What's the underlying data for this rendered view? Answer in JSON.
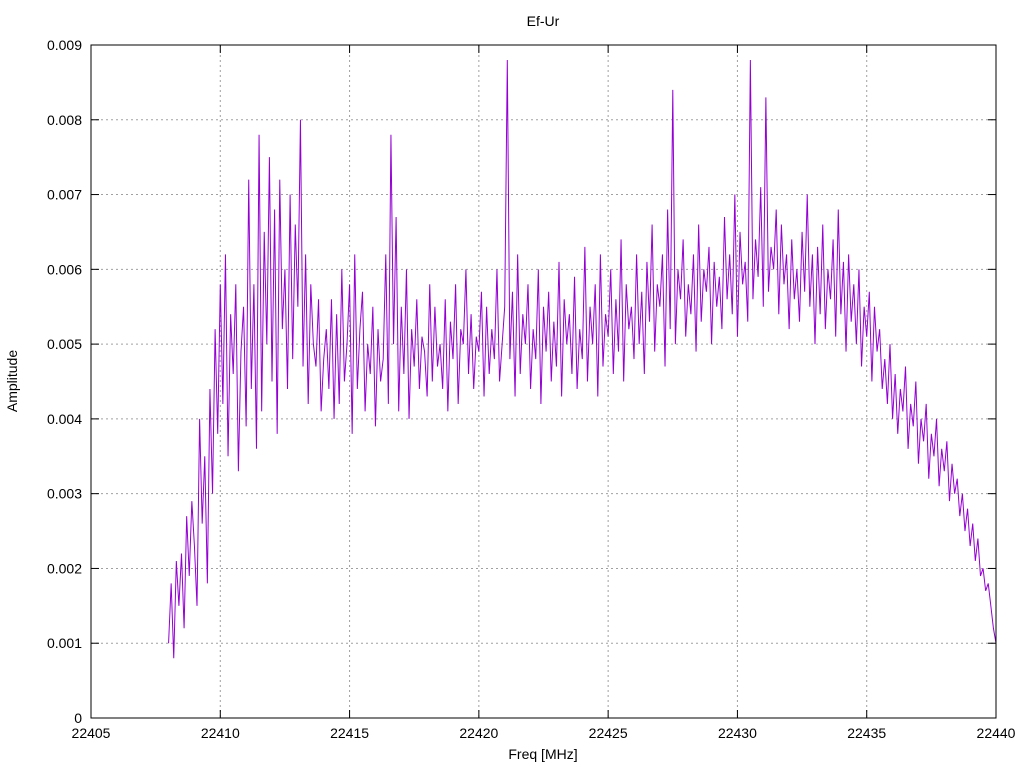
{
  "chart_data": {
    "type": "line",
    "title": "Ef-Ur",
    "xlabel": "Freq [MHz]",
    "ylabel": "Amplitude",
    "xlim": [
      22405,
      22440
    ],
    "ylim": [
      0,
      0.009
    ],
    "xticks": [
      22405,
      22410,
      22415,
      22420,
      22425,
      22430,
      22435,
      22440
    ],
    "xtick_labels": [
      "22405",
      "22410",
      "22415",
      "22420",
      "22425",
      "22430",
      "22435",
      "22440"
    ],
    "yticks": [
      0,
      0.001,
      0.002,
      0.003,
      0.004,
      0.005,
      0.006,
      0.007,
      0.008,
      0.009
    ],
    "ytick_labels": [
      "0",
      "0.001",
      "0.002",
      "0.003",
      "0.004",
      "0.005",
      "0.006",
      "0.007",
      "0.008",
      "0.009"
    ],
    "grid": true,
    "line_color": "#9400d3",
    "series": [
      {
        "x_start": 22408.0,
        "x_end": 22440.0,
        "x_step": 0.1,
        "values": [
          0.001,
          0.0018,
          0.0008,
          0.0021,
          0.0015,
          0.0022,
          0.0012,
          0.0027,
          0.0019,
          0.0029,
          0.0023,
          0.0015,
          0.004,
          0.0026,
          0.0035,
          0.0018,
          0.0044,
          0.003,
          0.0052,
          0.0038,
          0.0058,
          0.0042,
          0.0062,
          0.0035,
          0.0054,
          0.0046,
          0.0058,
          0.0033,
          0.0049,
          0.0055,
          0.0039,
          0.0072,
          0.0044,
          0.0058,
          0.0036,
          0.0078,
          0.0041,
          0.0065,
          0.005,
          0.0075,
          0.0045,
          0.0068,
          0.0038,
          0.0072,
          0.0052,
          0.006,
          0.0044,
          0.007,
          0.0048,
          0.0066,
          0.0055,
          0.008,
          0.0047,
          0.0062,
          0.0042,
          0.0058,
          0.005,
          0.0047,
          0.0056,
          0.0041,
          0.0048,
          0.0052,
          0.0044,
          0.0056,
          0.004,
          0.0054,
          0.0042,
          0.006,
          0.0045,
          0.005,
          0.0058,
          0.0038,
          0.0062,
          0.0044,
          0.0052,
          0.0057,
          0.0041,
          0.005,
          0.0046,
          0.0055,
          0.0039,
          0.0052,
          0.0045,
          0.0048,
          0.0062,
          0.0042,
          0.0078,
          0.005,
          0.0067,
          0.0041,
          0.0055,
          0.0046,
          0.006,
          0.004,
          0.0052,
          0.0047,
          0.0056,
          0.0044,
          0.0051,
          0.0049,
          0.0043,
          0.0058,
          0.0045,
          0.0055,
          0.0047,
          0.005,
          0.0044,
          0.0056,
          0.0041,
          0.0053,
          0.0048,
          0.0058,
          0.0042,
          0.0052,
          0.005,
          0.006,
          0.0046,
          0.0054,
          0.0044,
          0.0051,
          0.0049,
          0.0057,
          0.0043,
          0.0055,
          0.0046,
          0.0052,
          0.0048,
          0.006,
          0.0045,
          0.005,
          0.0055,
          0.0088,
          0.0048,
          0.0057,
          0.0043,
          0.0062,
          0.0046,
          0.0054,
          0.005,
          0.0058,
          0.0044,
          0.0052,
          0.0048,
          0.006,
          0.0042,
          0.0055,
          0.0049,
          0.0057,
          0.0045,
          0.0053,
          0.0047,
          0.0061,
          0.0043,
          0.0056,
          0.005,
          0.0054,
          0.0046,
          0.0059,
          0.0044,
          0.0052,
          0.0048,
          0.0063,
          0.0045,
          0.0055,
          0.005,
          0.0058,
          0.0043,
          0.0062,
          0.0047,
          0.0054,
          0.0051,
          0.006,
          0.0046,
          0.0056,
          0.0049,
          0.0064,
          0.0045,
          0.0058,
          0.0052,
          0.0055,
          0.0048,
          0.0062,
          0.005,
          0.0057,
          0.0046,
          0.0061,
          0.0053,
          0.0066,
          0.0049,
          0.0058,
          0.0055,
          0.0062,
          0.0047,
          0.0068,
          0.0052,
          0.0084,
          0.005,
          0.006,
          0.0056,
          0.0064,
          0.0051,
          0.0058,
          0.0054,
          0.0062,
          0.0049,
          0.0066,
          0.0053,
          0.006,
          0.0057,
          0.0063,
          0.005,
          0.0061,
          0.0055,
          0.0059,
          0.0052,
          0.0067,
          0.0056,
          0.0062,
          0.0054,
          0.007,
          0.0051,
          0.0065,
          0.0058,
          0.0061,
          0.0053,
          0.0088,
          0.0056,
          0.0064,
          0.0059,
          0.0071,
          0.0055,
          0.0083,
          0.0057,
          0.0063,
          0.006,
          0.0068,
          0.0054,
          0.0066,
          0.0058,
          0.0062,
          0.0052,
          0.0064,
          0.0056,
          0.006,
          0.0053,
          0.0065,
          0.0057,
          0.007,
          0.0055,
          0.0062,
          0.005,
          0.0063,
          0.0054,
          0.0066,
          0.0052,
          0.006,
          0.0056,
          0.0064,
          0.0051,
          0.0068,
          0.0054,
          0.0061,
          0.0049,
          0.0062,
          0.0053,
          0.0058,
          0.005,
          0.006,
          0.0047,
          0.0055,
          0.0051,
          0.0057,
          0.0045,
          0.0055,
          0.0049,
          0.0052,
          0.0044,
          0.0048,
          0.0042,
          0.005,
          0.004,
          0.0046,
          0.0038,
          0.0044,
          0.0041,
          0.0047,
          0.0036,
          0.0042,
          0.0039,
          0.0045,
          0.0034,
          0.004,
          0.0037,
          0.0042,
          0.0032,
          0.0038,
          0.0035,
          0.004,
          0.0031,
          0.0036,
          0.0033,
          0.0037,
          0.0029,
          0.0034,
          0.003,
          0.0032,
          0.0027,
          0.003,
          0.0025,
          0.0028,
          0.0023,
          0.0026,
          0.0021,
          0.0024,
          0.0019,
          0.002,
          0.0017,
          0.0018,
          0.0015,
          0.0012,
          0.001
        ]
      }
    ]
  }
}
